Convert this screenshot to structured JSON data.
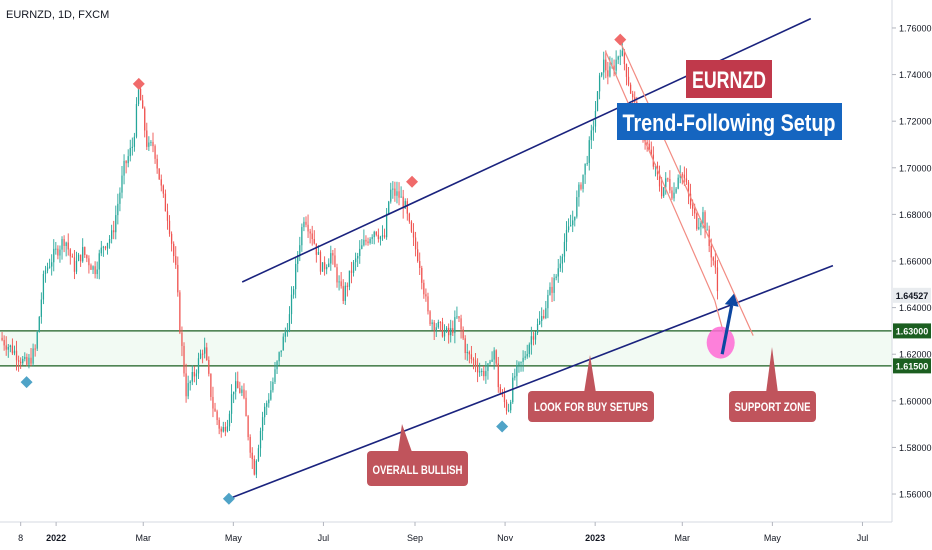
{
  "header": {
    "symbol_label": "EURNZD, 1D, FXCM"
  },
  "colors": {
    "up": "#26a69a",
    "down": "#ef5350",
    "trend": "#1a237e",
    "channel": "#f28b82",
    "zone": "#1b5e20",
    "callout": "#c0545c",
    "title_red": "#c0394b",
    "title_blue": "#1565c0",
    "marker_red": "#f06a6a",
    "marker_blue": "#4fa3c7",
    "circle": "#ff6ad5",
    "arrow": "#0d47a1"
  },
  "title": {
    "line1": "EURNZD",
    "line2": "Trend-Following Setup"
  },
  "callouts": {
    "overall_bullish": "OVERALL BULLISH",
    "look_for_buy": "LOOK FOR BUY SETUPS",
    "support_zone": "SUPPORT ZONE"
  },
  "chart_data": {
    "type": "candlestick",
    "symbol": "EURNZD",
    "timeframe": "1D",
    "source": "FXCM",
    "y_axis": {
      "ticks": [
        "1.56000",
        "1.58000",
        "1.60000",
        "1.62000",
        "1.64000",
        "1.66000",
        "1.68000",
        "1.70000",
        "1.72000",
        "1.74000",
        "1.76000"
      ],
      "range": [
        1.548,
        1.772
      ]
    },
    "x_axis": {
      "ticks": [
        {
          "label": "8",
          "day": 0
        },
        {
          "label": "2022",
          "day": 24
        },
        {
          "label": "Mar",
          "day": 83
        },
        {
          "label": "May",
          "day": 144
        },
        {
          "label": "Jul",
          "day": 205
        },
        {
          "label": "Sep",
          "day": 267
        },
        {
          "label": "Nov",
          "day": 328
        },
        {
          "label": "2023",
          "day": 389
        },
        {
          "label": "Mar",
          "day": 448
        },
        {
          "label": "May",
          "day": 509
        },
        {
          "label": "Jul",
          "day": 570
        }
      ],
      "range": [
        -14,
        590
      ]
    },
    "price_path": [
      [
        -14,
        1.627
      ],
      [
        -4,
        1.621
      ],
      [
        4,
        1.615
      ],
      [
        10,
        1.622
      ],
      [
        16,
        1.655
      ],
      [
        22,
        1.662
      ],
      [
        30,
        1.67
      ],
      [
        36,
        1.657
      ],
      [
        42,
        1.664
      ],
      [
        50,
        1.656
      ],
      [
        56,
        1.667
      ],
      [
        62,
        1.671
      ],
      [
        70,
        1.7
      ],
      [
        76,
        1.71
      ],
      [
        80,
        1.734
      ],
      [
        86,
        1.708
      ],
      [
        90,
        1.71
      ],
      [
        96,
        1.688
      ],
      [
        100,
        1.678
      ],
      [
        105,
        1.656
      ],
      [
        108,
        1.63
      ],
      [
        112,
        1.604
      ],
      [
        118,
        1.612
      ],
      [
        124,
        1.624
      ],
      [
        130,
        1.598
      ],
      [
        136,
        1.586
      ],
      [
        140,
        1.592
      ],
      [
        144,
        1.606
      ],
      [
        150,
        1.604
      ],
      [
        154,
        1.586
      ],
      [
        158,
        1.57
      ],
      [
        164,
        1.594
      ],
      [
        170,
        1.606
      ],
      [
        176,
        1.622
      ],
      [
        182,
        1.636
      ],
      [
        188,
        1.665
      ],
      [
        192,
        1.68
      ],
      [
        198,
        1.67
      ],
      [
        204,
        1.656
      ],
      [
        210,
        1.663
      ],
      [
        218,
        1.644
      ],
      [
        224,
        1.656
      ],
      [
        232,
        1.667
      ],
      [
        240,
        1.674
      ],
      [
        246,
        1.668
      ],
      [
        250,
        1.69
      ],
      [
        256,
        1.688
      ],
      [
        260,
        1.684
      ],
      [
        264,
        1.672
      ],
      [
        270,
        1.66
      ],
      [
        276,
        1.636
      ],
      [
        282,
        1.632
      ],
      [
        290,
        1.628
      ],
      [
        296,
        1.636
      ],
      [
        302,
        1.62
      ],
      [
        308,
        1.616
      ],
      [
        312,
        1.612
      ],
      [
        318,
        1.614
      ],
      [
        320,
        1.625
      ],
      [
        324,
        1.604
      ],
      [
        330,
        1.596
      ],
      [
        334,
        1.61
      ],
      [
        340,
        1.617
      ],
      [
        346,
        1.628
      ],
      [
        352,
        1.634
      ],
      [
        358,
        1.646
      ],
      [
        362,
        1.652
      ],
      [
        368,
        1.668
      ],
      [
        374,
        1.678
      ],
      [
        378,
        1.69
      ],
      [
        382,
        1.7
      ],
      [
        386,
        1.712
      ],
      [
        390,
        1.728
      ],
      [
        394,
        1.746
      ],
      [
        398,
        1.74
      ],
      [
        402,
        1.744
      ],
      [
        406,
        1.751
      ],
      [
        410,
        1.742
      ],
      [
        414,
        1.73
      ],
      [
        418,
        1.722
      ],
      [
        422,
        1.714
      ],
      [
        426,
        1.706
      ],
      [
        430,
        1.698
      ],
      [
        434,
        1.69
      ],
      [
        438,
        1.695
      ],
      [
        442,
        1.688
      ],
      [
        446,
        1.7
      ],
      [
        450,
        1.694
      ],
      [
        454,
        1.683
      ],
      [
        458,
        1.676
      ],
      [
        462,
        1.68
      ],
      [
        466,
        1.667
      ],
      [
        470,
        1.658
      ],
      [
        472,
        1.646
      ]
    ],
    "last_price": "1.64527",
    "support_zone": {
      "top": "1.63000",
      "bottom": "1.61500",
      "top_value": 1.63,
      "bottom_value": 1.615
    },
    "trendlines": [
      {
        "name": "upper_trend",
        "points": [
          [
            150,
            1.651
          ],
          [
            535,
            1.764
          ]
        ]
      },
      {
        "name": "lower_trend",
        "points": [
          [
            141,
            1.558
          ],
          [
            550,
            1.658
          ]
        ]
      }
    ],
    "channel_lines": [
      [
        [
          396,
          1.75
        ],
        [
          470,
          1.643
        ]
      ],
      [
        [
          406,
          1.754
        ],
        [
          496,
          1.628
        ]
      ],
      [
        [
          470,
          1.643
        ],
        [
          476,
          1.629
        ]
      ]
    ],
    "swing_markers": [
      {
        "type": "high",
        "day": 80,
        "price": 1.736
      },
      {
        "type": "high",
        "day": 265,
        "price": 1.694
      },
      {
        "type": "high",
        "day": 406,
        "price": 1.755
      },
      {
        "type": "low",
        "day": 4,
        "price": 1.608
      },
      {
        "type": "low",
        "day": 141,
        "price": 1.558
      },
      {
        "type": "low",
        "day": 326,
        "price": 1.589
      }
    ],
    "buy_zone_circle": {
      "day": 474,
      "price": 1.625
    },
    "arrow": {
      "from": [
        475,
        1.62
      ],
      "to": [
        483,
        1.646
      ]
    }
  }
}
